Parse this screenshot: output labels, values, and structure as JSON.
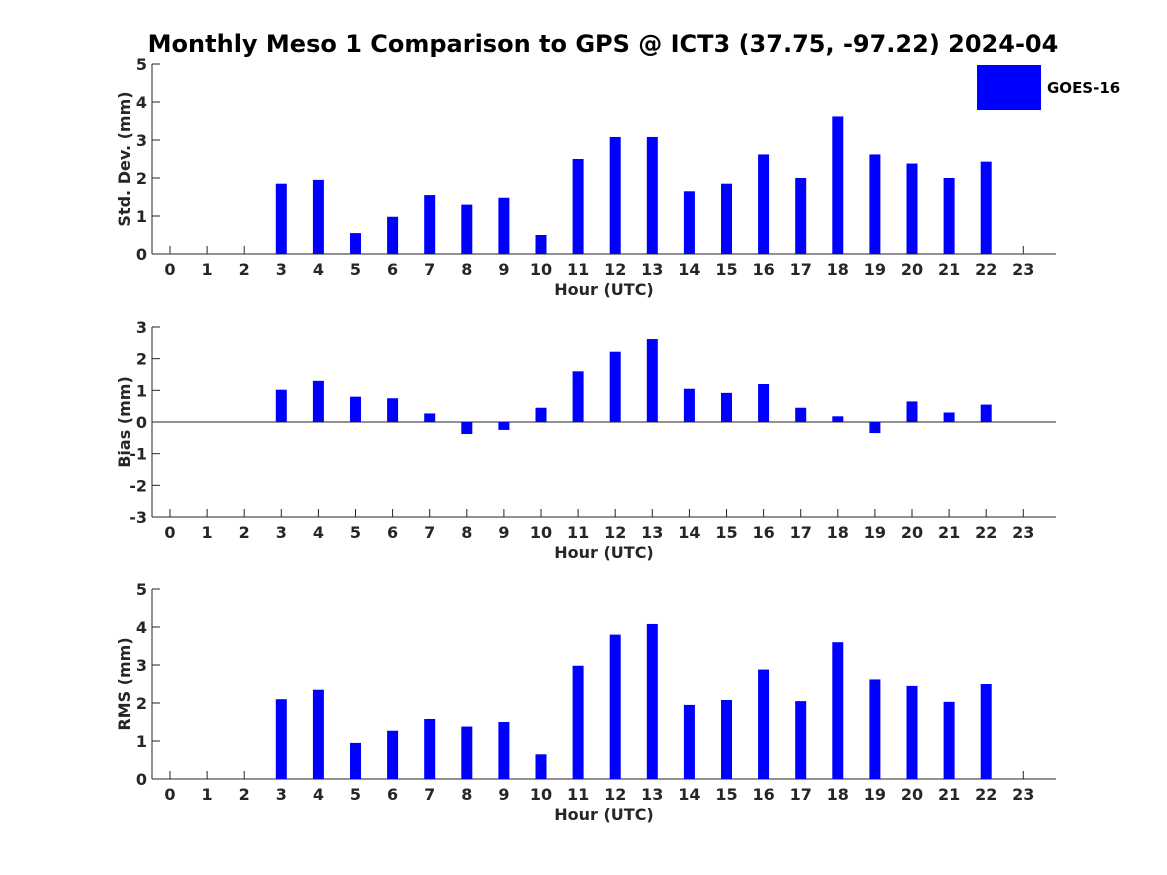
{
  "title": "Monthly Meso 1 Comparison to GPS @ ICT3 (37.75, -97.22) 2024-04",
  "colors": {
    "bar": "#0000ff",
    "axis": "#262626"
  },
  "legend": {
    "label": "GOES-16",
    "placement": "top-right"
  },
  "chart_data": [
    {
      "type": "bar",
      "xlabel": "Hour (UTC)",
      "ylabel": "Std. Dev. (mm)",
      "ylim": [
        0,
        5
      ],
      "yticks": [
        0,
        1,
        2,
        3,
        4,
        5
      ],
      "categories": [
        0,
        1,
        2,
        3,
        4,
        5,
        6,
        7,
        8,
        9,
        10,
        11,
        12,
        13,
        14,
        15,
        16,
        17,
        18,
        19,
        20,
        21,
        22,
        23
      ],
      "series": [
        {
          "name": "GOES-16",
          "values": [
            null,
            null,
            null,
            1.85,
            1.95,
            0.55,
            0.98,
            1.55,
            1.3,
            1.48,
            0.5,
            2.5,
            3.08,
            3.08,
            1.65,
            1.85,
            2.62,
            2.0,
            3.62,
            2.62,
            2.38,
            2.0,
            2.43,
            null
          ]
        }
      ]
    },
    {
      "type": "bar",
      "xlabel": "Hour (UTC)",
      "ylabel": "Bias (mm)",
      "ylim": [
        -3,
        3
      ],
      "yticks": [
        -3,
        -2,
        -1,
        0,
        1,
        2,
        3
      ],
      "categories": [
        0,
        1,
        2,
        3,
        4,
        5,
        6,
        7,
        8,
        9,
        10,
        11,
        12,
        13,
        14,
        15,
        16,
        17,
        18,
        19,
        20,
        21,
        22,
        23
      ],
      "series": [
        {
          "name": "GOES-16",
          "values": [
            null,
            null,
            null,
            1.02,
            1.3,
            0.8,
            0.75,
            0.27,
            -0.38,
            -0.25,
            0.45,
            1.6,
            2.22,
            2.62,
            1.05,
            0.92,
            1.2,
            0.45,
            0.18,
            -0.35,
            0.65,
            0.3,
            0.55,
            null
          ]
        }
      ]
    },
    {
      "type": "bar",
      "xlabel": "Hour (UTC)",
      "ylabel": "RMS (mm)",
      "ylim": [
        0,
        5
      ],
      "yticks": [
        0,
        1,
        2,
        3,
        4,
        5
      ],
      "categories": [
        0,
        1,
        2,
        3,
        4,
        5,
        6,
        7,
        8,
        9,
        10,
        11,
        12,
        13,
        14,
        15,
        16,
        17,
        18,
        19,
        20,
        21,
        22,
        23
      ],
      "series": [
        {
          "name": "GOES-16",
          "values": [
            null,
            null,
            null,
            2.1,
            2.35,
            0.95,
            1.27,
            1.58,
            1.38,
            1.5,
            0.65,
            2.98,
            3.8,
            4.08,
            1.95,
            2.08,
            2.88,
            2.05,
            3.6,
            2.62,
            2.45,
            2.03,
            2.5,
            null
          ]
        }
      ]
    }
  ]
}
